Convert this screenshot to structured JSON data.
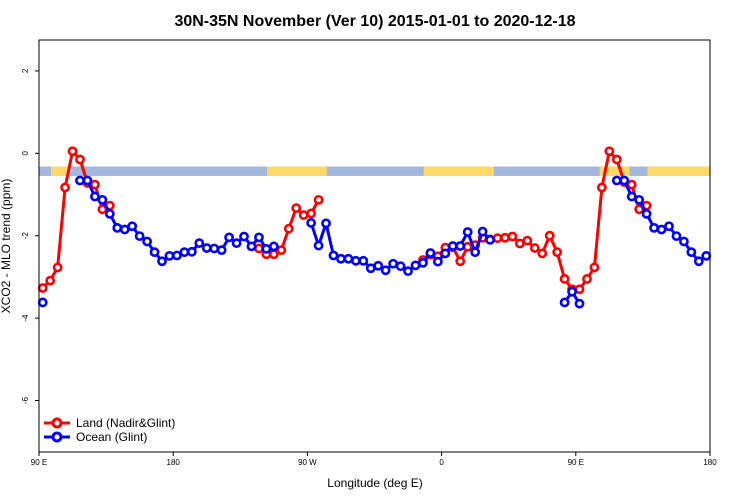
{
  "chart_data": {
    "type": "line",
    "title": "30N-35N November (Ver 10)   2015-01-01 to 2020-12-18",
    "xlabel": "Longitude (deg E)",
    "ylabel": "XCO2 - MLO trend (ppm)",
    "x_tick_values": [
      90,
      180,
      270,
      360,
      450,
      540
    ],
    "x_tick_labels": [
      "90 E",
      "180",
      "90 W",
      "0",
      "90 E",
      "180"
    ],
    "xlim": [
      90,
      540
    ],
    "y_ticks": [
      2,
      0,
      -2,
      -4,
      -6
    ],
    "ylim": [
      -7.25,
      2.75
    ],
    "colors": {
      "land": "#ff0000",
      "ocean": "#0000ff",
      "land_band": "#ffd966",
      "ocean_band": "#a3b8dc"
    },
    "surface_band": {
      "y_top": -0.32,
      "y_bottom": -0.55,
      "land_lon_ranges": [
        [
          98,
          110
        ],
        [
          243,
          283
        ],
        [
          348,
          395
        ],
        [
          466,
          486
        ],
        [
          498,
          540
        ]
      ]
    },
    "legend": [
      "Land (Nadir&Glint)",
      "Ocean (Glint)"
    ],
    "series": [
      {
        "name": "Land (Nadir&Glint)",
        "color": "#ff0000",
        "segments": [
          [
            [
              92.5,
              -3.27
            ],
            [
              97.5,
              -3.09
            ],
            [
              102.5,
              -2.77
            ],
            [
              107.5,
              -0.83
            ],
            [
              112.5,
              0.05
            ],
            [
              117.5,
              -0.15
            ],
            [
              122.5,
              -0.72
            ],
            [
              127.5,
              -0.76
            ],
            [
              132.5,
              -1.36
            ],
            [
              137.5,
              -1.27
            ]
          ],
          [
            [
              237.5,
              -2.31
            ],
            [
              242.5,
              -2.45
            ],
            [
              247.5,
              -2.45
            ],
            [
              252.5,
              -2.35
            ],
            [
              257.5,
              -1.83
            ],
            [
              262.5,
              -1.33
            ],
            [
              267.5,
              -1.5
            ],
            [
              272.5,
              -1.46
            ],
            [
              277.5,
              -1.13
            ]
          ],
          [
            [
              347.5,
              -2.59
            ],
            [
              352.5,
              -2.46
            ],
            [
              357.5,
              -2.5
            ],
            [
              362.5,
              -2.29
            ],
            [
              367.5,
              -2.28
            ],
            [
              372.5,
              -2.62
            ],
            [
              377.5,
              -2.27
            ],
            [
              382.5,
              -2.23
            ],
            [
              387.5,
              -2.05
            ],
            [
              392.5,
              -2.09
            ],
            [
              397.5,
              -2.06
            ],
            [
              402.5,
              -2.05
            ],
            [
              407.5,
              -2.02
            ],
            [
              412.5,
              -2.19
            ],
            [
              417.5,
              -2.12
            ],
            [
              422.5,
              -2.3
            ],
            [
              427.5,
              -2.43
            ],
            [
              432.5,
              -2.0
            ],
            [
              437.5,
              -2.4
            ],
            [
              442.5,
              -3.05
            ],
            [
              447.5,
              -3.3
            ],
            [
              452.5,
              -3.3
            ],
            [
              457.5,
              -3.05
            ],
            [
              462.5,
              -2.77
            ],
            [
              467.5,
              -0.83
            ],
            [
              472.5,
              0.05
            ],
            [
              477.5,
              -0.15
            ],
            [
              482.5,
              -0.7
            ],
            [
              487.5,
              -0.76
            ],
            [
              492.5,
              -1.36
            ],
            [
              497.5,
              -1.27
            ]
          ]
        ]
      },
      {
        "name": "Ocean (Glint)",
        "color": "#0000ff",
        "segments": [
          [
            [
              92.5,
              -3.62
            ]
          ],
          [
            [
              117.5,
              -0.66
            ],
            [
              122.5,
              -0.66
            ],
            [
              127.5,
              -1.05
            ],
            [
              132.5,
              -1.13
            ],
            [
              137.5,
              -1.47
            ],
            [
              142.5,
              -1.81
            ],
            [
              147.5,
              -1.85
            ],
            [
              152.5,
              -1.77
            ],
            [
              157.5,
              -2.01
            ],
            [
              162.5,
              -2.14
            ],
            [
              167.5,
              -2.4
            ],
            [
              172.5,
              -2.62
            ],
            [
              177.5,
              -2.49
            ],
            [
              182.5,
              -2.48
            ],
            [
              187.5,
              -2.4
            ],
            [
              192.5,
              -2.39
            ],
            [
              197.5,
              -2.18
            ],
            [
              202.5,
              -2.3
            ],
            [
              207.5,
              -2.31
            ],
            [
              212.5,
              -2.35
            ],
            [
              217.5,
              -2.04
            ],
            [
              222.5,
              -2.18
            ],
            [
              227.5,
              -2.02
            ],
            [
              232.5,
              -2.26
            ],
            [
              237.5,
              -2.04
            ],
            [
              242.5,
              -2.32
            ],
            [
              247.5,
              -2.26
            ]
          ],
          [
            [
              272.5,
              -1.69
            ],
            [
              277.5,
              -2.24
            ],
            [
              282.5,
              -1.7
            ],
            [
              287.5,
              -2.48
            ],
            [
              292.5,
              -2.56
            ],
            [
              297.5,
              -2.56
            ],
            [
              302.5,
              -2.61
            ],
            [
              307.5,
              -2.61
            ],
            [
              312.5,
              -2.79
            ],
            [
              317.5,
              -2.73
            ],
            [
              322.5,
              -2.84
            ],
            [
              327.5,
              -2.68
            ],
            [
              332.5,
              -2.74
            ],
            [
              337.5,
              -2.86
            ],
            [
              342.5,
              -2.72
            ],
            [
              347.5,
              -2.66
            ],
            [
              352.5,
              -2.42
            ],
            [
              357.5,
              -2.63
            ],
            [
              362.5,
              -2.43
            ],
            [
              367.5,
              -2.25
            ],
            [
              372.5,
              -2.25
            ],
            [
              377.5,
              -1.91
            ],
            [
              382.5,
              -2.4
            ],
            [
              387.5,
              -1.9
            ],
            [
              392.5,
              -2.1
            ]
          ],
          [
            [
              442.5,
              -3.62
            ],
            [
              447.5,
              -3.36
            ],
            [
              452.5,
              -3.65
            ]
          ],
          [
            [
              477.5,
              -0.66
            ],
            [
              482.5,
              -0.66
            ],
            [
              487.5,
              -1.05
            ],
            [
              492.5,
              -1.13
            ],
            [
              497.5,
              -1.47
            ],
            [
              502.5,
              -1.81
            ],
            [
              507.5,
              -1.85
            ],
            [
              512.5,
              -1.77
            ],
            [
              517.5,
              -2.01
            ],
            [
              522.5,
              -2.14
            ],
            [
              527.5,
              -2.4
            ],
            [
              532.5,
              -2.62
            ],
            [
              537.5,
              -2.49
            ]
          ]
        ]
      }
    ]
  }
}
